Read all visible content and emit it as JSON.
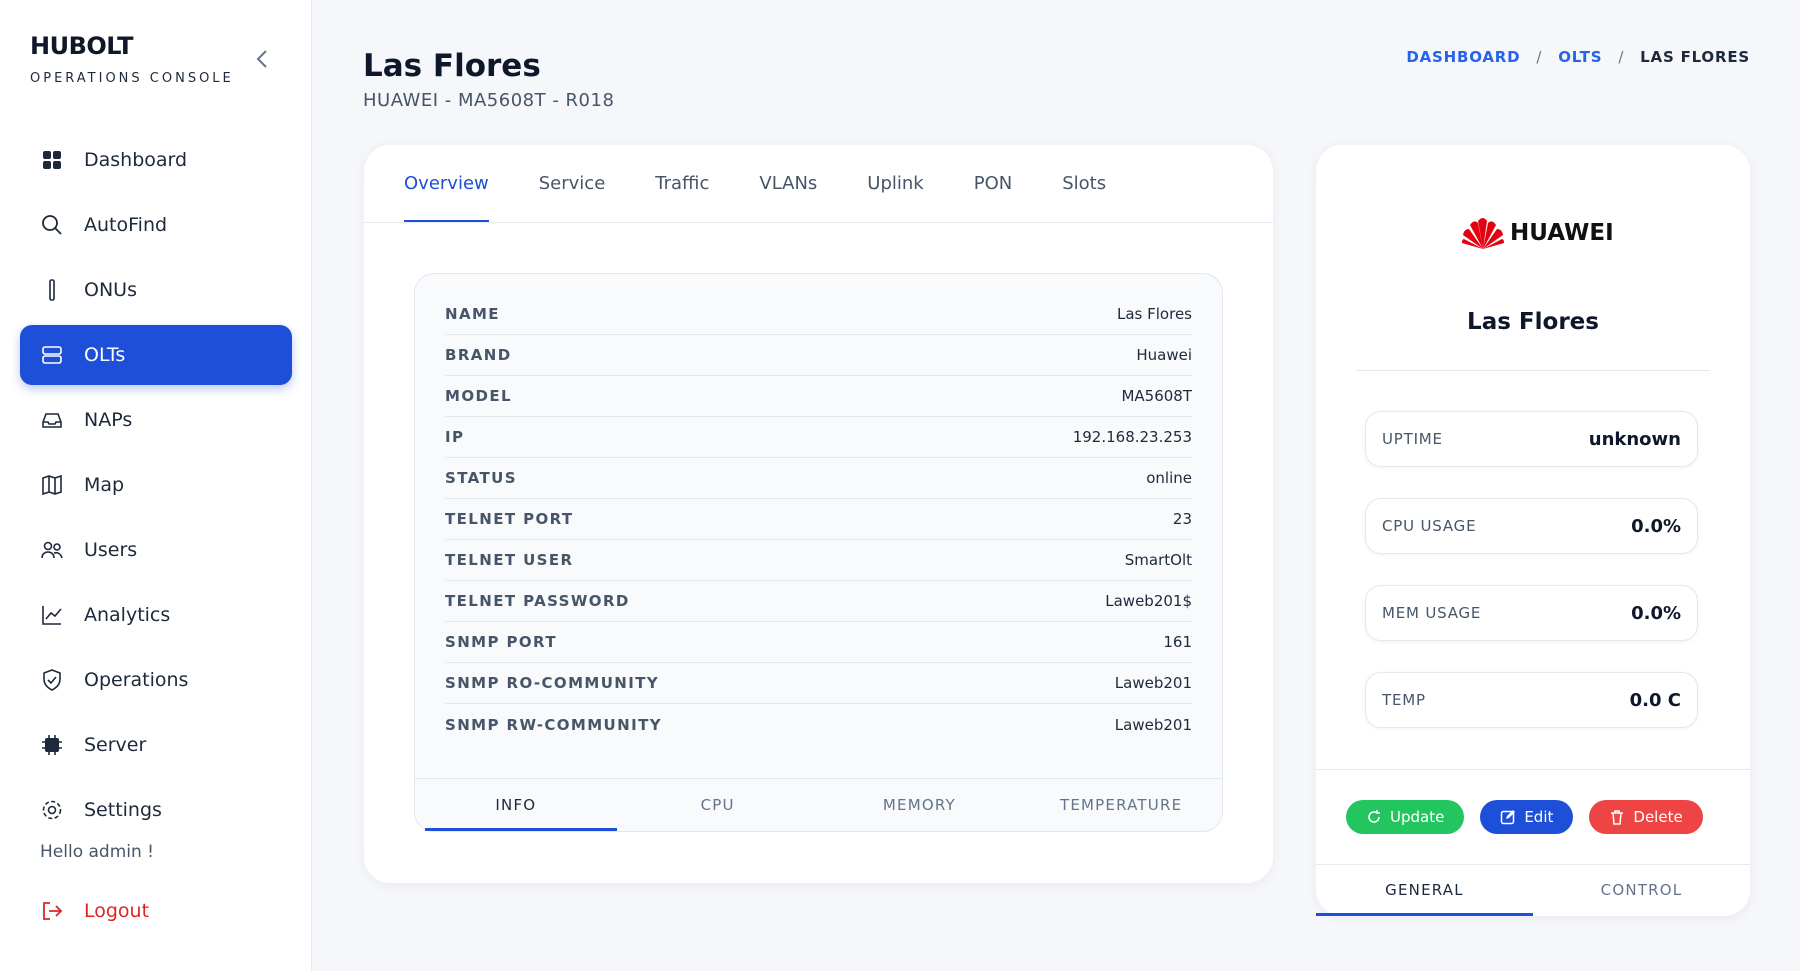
{
  "sidebar": {
    "brand": "HUBOLT",
    "subtitle": "OPERATIONS CONSOLE",
    "nav": [
      "Dashboard",
      "AutoFind",
      "ONUs",
      "OLTs",
      "NAPs",
      "Map",
      "Users",
      "Analytics",
      "Operations",
      "Server",
      "Settings"
    ],
    "greeting": "Hello admin !",
    "logout": "Logout"
  },
  "header": {
    "title": "Las Flores",
    "subtitle": "HUAWEI - MA5608T - R018",
    "breadcrumb": [
      "DASHBOARD",
      "OLTS",
      "LAS FLORES"
    ]
  },
  "tabs": [
    "Overview",
    "Service",
    "Traffic",
    "VLANs",
    "Uplink",
    "PON",
    "Slots"
  ],
  "details": {
    "rows": [
      [
        "NAME",
        "Las Flores"
      ],
      [
        "BRAND",
        "Huawei"
      ],
      [
        "MODEL",
        "MA5608T"
      ],
      [
        "IP",
        "192.168.23.253"
      ],
      [
        "STATUS",
        "online"
      ],
      [
        "TELNET PORT",
        "23"
      ],
      [
        "TELNET USER",
        "SmartOlt"
      ],
      [
        "TELNET PASSWORD",
        "Laweb201$"
      ],
      [
        "SNMP PORT",
        "161"
      ],
      [
        "SNMP RO-COMMUNITY",
        "Laweb201"
      ],
      [
        "SNMP RW-COMMUNITY",
        "Laweb201"
      ]
    ],
    "tabs": [
      "INFO",
      "CPU",
      "MEMORY",
      "TEMPERATURE"
    ]
  },
  "device": {
    "logo": "HUAWEI",
    "name": "Las Flores",
    "stats": [
      [
        "UPTIME",
        "unknown"
      ],
      [
        "CPU USAGE",
        "0.0%"
      ],
      [
        "MEM USAGE",
        "0.0%"
      ],
      [
        "TEMP",
        "0.0 C"
      ]
    ],
    "buttons": [
      "Update",
      "Edit",
      "Delete"
    ],
    "tabs": [
      "GENERAL",
      "CONTROL"
    ]
  }
}
